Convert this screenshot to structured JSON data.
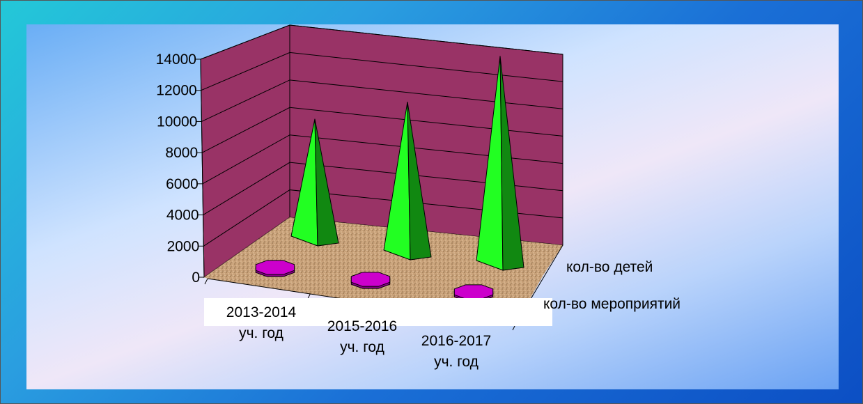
{
  "chart_data": {
    "type": "bar",
    "style": "3d-pyramid",
    "categories": [
      [
        "2013-2014",
        "уч. год"
      ],
      [
        "2015-2016",
        "уч. год"
      ],
      [
        "2016-2017",
        "уч. год"
      ]
    ],
    "series": [
      {
        "name": "кол-во детей",
        "values": [
          8300,
          10400,
          14200
        ],
        "color": "#22ff22"
      },
      {
        "name": "кол-во мероприятий",
        "values": [
          150,
          130,
          150
        ],
        "color": "#cc00cc"
      }
    ],
    "yticks": [
      "0",
      "2000",
      "4000",
      "6000",
      "8000",
      "10000",
      "12000",
      "14000"
    ],
    "ylim": [
      0,
      14000
    ],
    "colors": {
      "walls": "#993366",
      "floor": "#c9a27a",
      "frame": "#1a7fd8",
      "panel": "#cfe3ff"
    },
    "grid": true
  }
}
